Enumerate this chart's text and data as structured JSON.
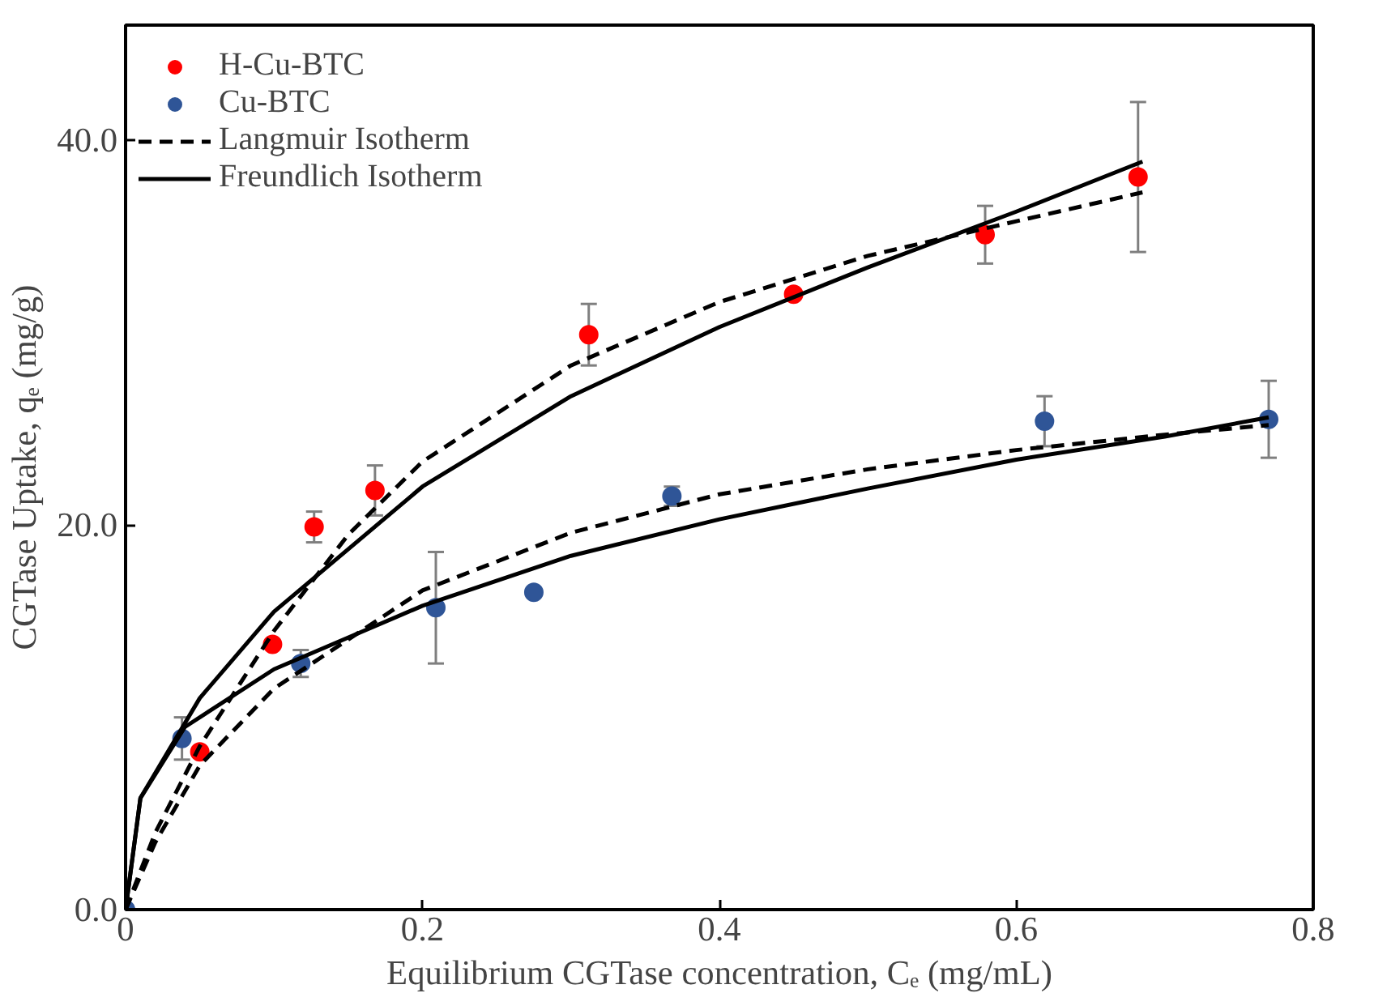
{
  "chart_data": {
    "type": "scatter",
    "xlabel": "Equilibrium CGTase concentration, Cₑ (mg/mL)",
    "ylabel": "CGTase Uptake, qₑ (mg/g)",
    "xlim": [
      0,
      0.8
    ],
    "ylim": [
      0,
      46
    ],
    "xticks": [
      0,
      0.2,
      0.4,
      0.6,
      0.8
    ],
    "yticks": [
      {
        "value": 0,
        "label": "0.0"
      },
      {
        "value": 20,
        "label": "20.0"
      },
      {
        "value": 40,
        "label": "40.0"
      }
    ],
    "grid": false,
    "legend": "top left",
    "series": [
      {
        "name": "H-Cu-BTC",
        "marker": "circle",
        "color": "#ff0000",
        "x": [
          0.05,
          0.099,
          0.127,
          0.168,
          0.312,
          0.45,
          0.579,
          0.682
        ],
        "values": [
          8.2,
          13.8,
          19.9,
          21.8,
          29.9,
          32.0,
          35.1,
          38.1
        ],
        "errors": [
          null,
          null,
          0.8,
          1.3,
          1.6,
          null,
          1.5,
          3.9
        ]
      },
      {
        "name": "Cu-BTC",
        "marker": "circle",
        "color": "#2f5597",
        "x": [
          0,
          0.038,
          0.118,
          0.209,
          0.275,
          0.368,
          0.619,
          0.77
        ],
        "values": [
          0,
          8.9,
          12.8,
          15.7,
          16.5,
          21.5,
          25.4,
          25.5
        ],
        "errors": [
          null,
          1.1,
          0.7,
          2.9,
          null,
          0.5,
          1.3,
          2.0
        ]
      },
      {
        "name": "Langmuir Isotherm",
        "type": "line",
        "line_style": "dashed",
        "color": "#000000",
        "x": [
          0,
          0.02,
          0.05,
          0.1,
          0.15,
          0.2,
          0.3,
          0.4,
          0.5,
          0.6,
          0.685
        ],
        "values": [
          0,
          4,
          8.5,
          14.5,
          19.5,
          23.3,
          28.3,
          31.6,
          34,
          35.8,
          37.3
        ]
      },
      {
        "name": "Freundlich Isotherm",
        "type": "line",
        "line_style": "solid",
        "color": "#000000",
        "x": [
          0,
          0.01,
          0.05,
          0.1,
          0.2,
          0.3,
          0.4,
          0.5,
          0.6,
          0.685
        ],
        "values": [
          0,
          5.8,
          11,
          15.5,
          22,
          26.7,
          30.3,
          33.4,
          36.3,
          38.9
        ]
      },
      {
        "type": "line",
        "line_style": "dashed",
        "color": "#000000",
        "x": [
          0,
          0.02,
          0.05,
          0.1,
          0.2,
          0.3,
          0.4,
          0.5,
          0.6,
          0.7,
          0.77
        ],
        "values": [
          0,
          3.5,
          7.5,
          11.5,
          16.6,
          19.6,
          21.6,
          22.9,
          23.9,
          24.7,
          25.2
        ]
      },
      {
        "type": "line",
        "line_style": "solid",
        "color": "#000000",
        "x": [
          0,
          0.01,
          0.04,
          0.1,
          0.2,
          0.3,
          0.4,
          0.5,
          0.6,
          0.7,
          0.77
        ],
        "values": [
          0,
          5.8,
          9.5,
          12.5,
          15.8,
          18.4,
          20.3,
          21.9,
          23.4,
          24.6,
          25.6
        ]
      }
    ]
  }
}
